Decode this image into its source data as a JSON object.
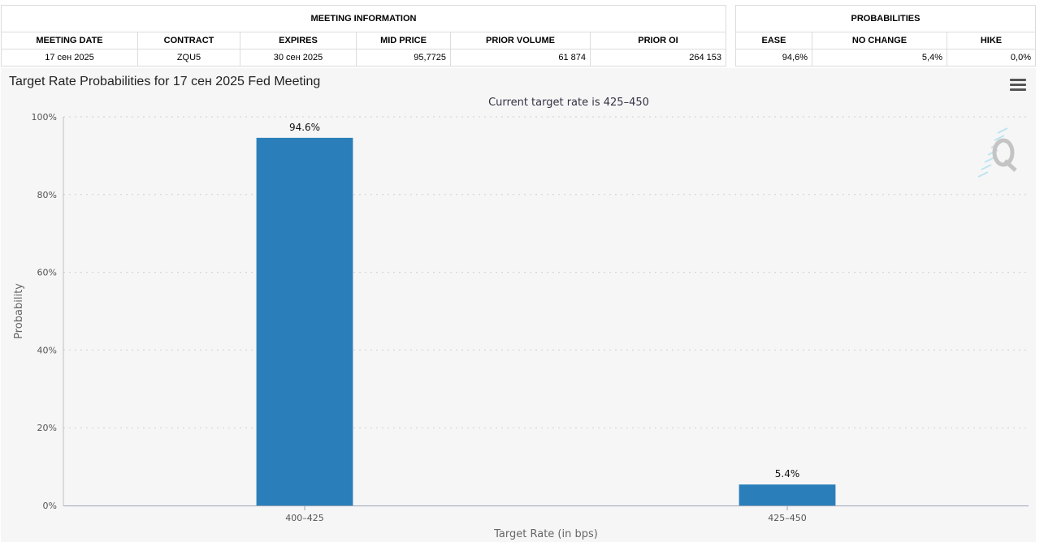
{
  "meeting_info": {
    "group_header": "MEETING INFORMATION",
    "columns": [
      "MEETING DATE",
      "CONTRACT",
      "EXPIRES",
      "MID PRICE",
      "PRIOR VOLUME",
      "PRIOR OI"
    ],
    "row": [
      "17 сен 2025",
      "ZQU5",
      "30 сен 2025",
      "95,7725",
      "61 874",
      "264 153"
    ]
  },
  "probabilities": {
    "group_header": "PROBABILITIES",
    "columns": [
      "EASE",
      "NO CHANGE",
      "HIKE"
    ],
    "row": [
      "94,6%",
      "5,4%",
      "0,0%"
    ]
  },
  "icons": {
    "menu": "hamburger-menu-icon",
    "logo": "q-logo-icon"
  },
  "colors": {
    "bar": "#2a7fba",
    "panel_bg": "#f6f6f6",
    "grid": "#d0d0d0"
  },
  "chart_data": {
    "type": "bar",
    "title": "Target Rate Probabilities for 17 сен 2025 Fed Meeting",
    "subtitle": "Current target rate is 425–450",
    "xlabel": "Target Rate (in bps)",
    "ylabel": "Probability",
    "categories": [
      "400–425",
      "425–450"
    ],
    "values": [
      94.6,
      5.4
    ],
    "data_labels": [
      "94.6%",
      "5.4%"
    ],
    "ylim": [
      0,
      100
    ],
    "yticks": [
      0,
      20,
      40,
      60,
      80,
      100
    ],
    "ytick_labels": [
      "0%",
      "20%",
      "40%",
      "60%",
      "80%",
      "100%"
    ],
    "grid": true,
    "legend": "none"
  }
}
